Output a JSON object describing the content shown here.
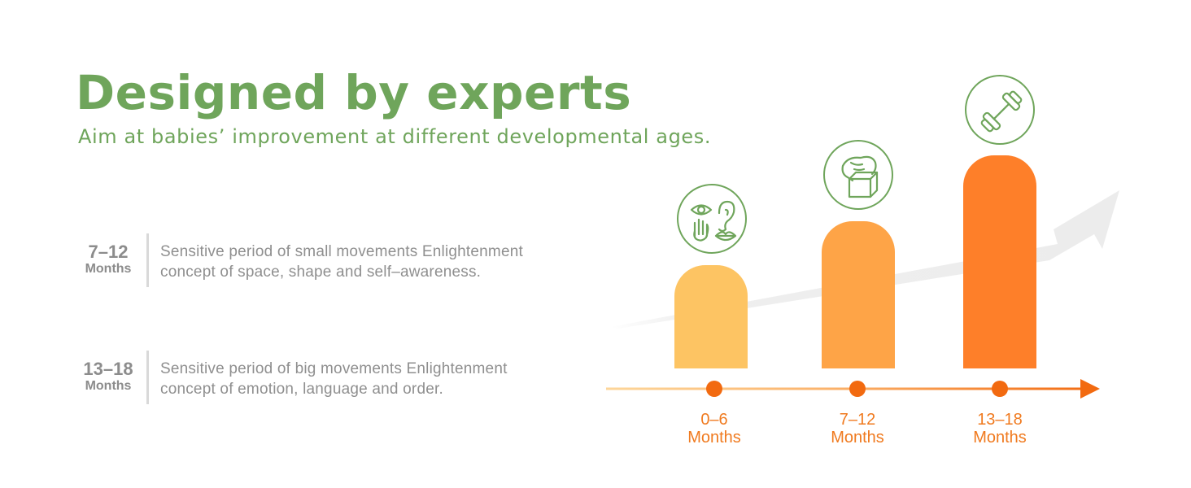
{
  "header": {
    "title": "Designed by experts",
    "subtitle": "Aim at babies’ improvement at different developmental ages."
  },
  "periods": [
    {
      "age": "7–12",
      "unit": "Months",
      "line1": "Sensitive period of small movements Enlightenment",
      "line2": "concept of space, shape and self–awareness."
    },
    {
      "age": "13–18",
      "unit": "Months",
      "line1": "Sensitive period of big movements Enlightenment",
      "line2": "concept of emotion, language and order."
    }
  ],
  "stages": [
    {
      "range": "0–6",
      "unit": "Months",
      "icon": "senses-icon",
      "color": "#fdc463"
    },
    {
      "range": "7–12",
      "unit": "Months",
      "icon": "hand-grasp-block-icon",
      "color": "#fea447"
    },
    {
      "range": "13–18",
      "unit": "Months",
      "icon": "dumbbell-icon",
      "color": "#fe7f29"
    }
  ],
  "colors": {
    "green": "#6fa55b",
    "orange": "#f26a10",
    "gray_text": "#8f8f8f"
  }
}
